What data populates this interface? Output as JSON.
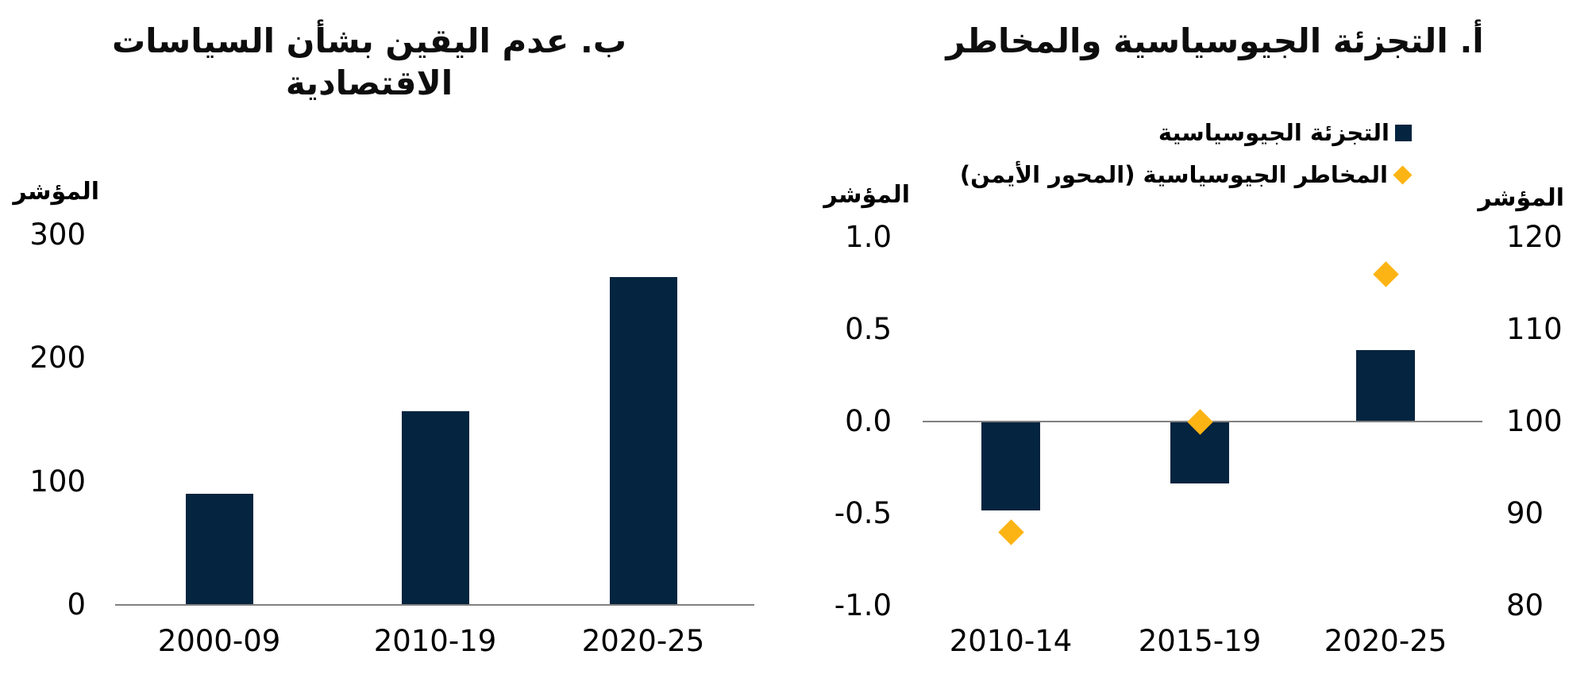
{
  "colors": {
    "navy": "#04243F",
    "amber": "#FCB414",
    "axis_gray": "#808080",
    "text": "#000000"
  },
  "chart_data": [
    {
      "id": "panel-a-geopolitical",
      "type": "bar",
      "title": "أ. التجزئة الجيوسياسية والمخاطر",
      "categories": [
        "2010-14",
        "2015-19",
        "2020-25"
      ],
      "series": [
        {
          "name": "التجزئة الجيوسياسية",
          "type": "bar",
          "axis": "left",
          "marker": "square",
          "color": "#04243F",
          "values": [
            -0.48,
            -0.33,
            0.39
          ]
        },
        {
          "name": "المخاطر الجيوسياسية (المحور الأيمن)",
          "type": "scatter",
          "axis": "right",
          "marker": "diamond",
          "color": "#FCB414",
          "values": [
            88,
            100,
            116
          ]
        }
      ],
      "left_axis": {
        "label": "المؤشر",
        "ticks": [
          "1.0",
          "0.5",
          "0.0",
          "-0.5",
          "-1.0"
        ],
        "tick_values": [
          1.0,
          0.5,
          0.0,
          -0.5,
          -1.0
        ],
        "min": -1.0,
        "max": 1.0
      },
      "right_axis": {
        "label": "المؤشر",
        "ticks": [
          "120",
          "110",
          "100",
          "90",
          "80"
        ],
        "tick_values": [
          120,
          110,
          100,
          90,
          80
        ],
        "min": 80,
        "max": 120
      },
      "legend_position": "top-right",
      "grid": false
    },
    {
      "id": "panel-b-policy-uncertainty",
      "type": "bar",
      "title": "ب. عدم اليقين بشأن السياسات الاقتصادية",
      "categories": [
        "2000-09",
        "2010-19",
        "2020-25"
      ],
      "values": [
        90,
        157,
        266
      ],
      "yaxis": {
        "label": "المؤشر",
        "ticks": [
          "300",
          "200",
          "100",
          "0"
        ],
        "tick_values": [
          300,
          200,
          100,
          0
        ],
        "min": 0,
        "max": 300
      },
      "bar_color": "#04243F",
      "grid": false
    }
  ]
}
